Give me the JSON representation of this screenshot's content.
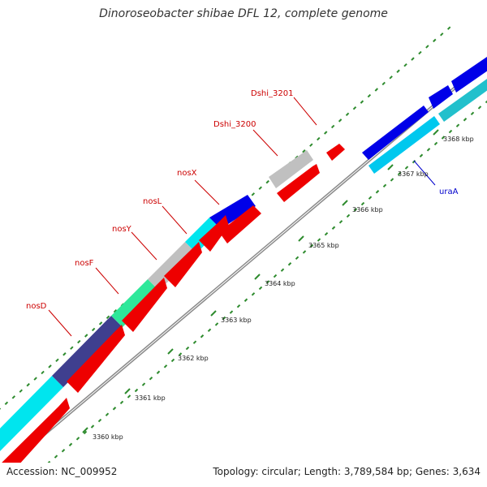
{
  "title": "Dinoroseobacter shibae DFL 12, complete genome",
  "footer": {
    "accession": "Accession: NC_009952",
    "summary": "Topology: circular; Length: 3,789,584 bp; Genes: 3,634"
  },
  "colors": {
    "backbone": "#7f7f7f",
    "tick": "#2e8b2e",
    "forward_label": "#cc0000",
    "reverse_label": "#0000cc"
  },
  "ticks": [
    {
      "kbp": 3360,
      "label": "3360 kbp"
    },
    {
      "kbp": 3361,
      "label": "3361 kbp"
    },
    {
      "kbp": 3362,
      "label": "3362 kbp"
    },
    {
      "kbp": 3363,
      "label": "3363 kbp"
    },
    {
      "kbp": 3364,
      "label": "3364 kbp"
    },
    {
      "kbp": 3365,
      "label": "3365 kbp"
    },
    {
      "kbp": 3366,
      "label": "3366 kbp"
    },
    {
      "kbp": 3367,
      "label": "3367 kbp"
    },
    {
      "kbp": 3368,
      "label": "3368 kbp"
    }
  ],
  "labels": [
    {
      "text": "nosD",
      "color": "#cc0000"
    },
    {
      "text": "nosF",
      "color": "#cc0000"
    },
    {
      "text": "nosY",
      "color": "#cc0000"
    },
    {
      "text": "nosL",
      "color": "#cc0000"
    },
    {
      "text": "nosX",
      "color": "#cc0000"
    },
    {
      "text": "Dshi_3200",
      "color": "#cc0000"
    },
    {
      "text": "Dshi_3201",
      "color": "#cc0000"
    },
    {
      "text": "uraA",
      "color": "#0000cc"
    }
  ]
}
